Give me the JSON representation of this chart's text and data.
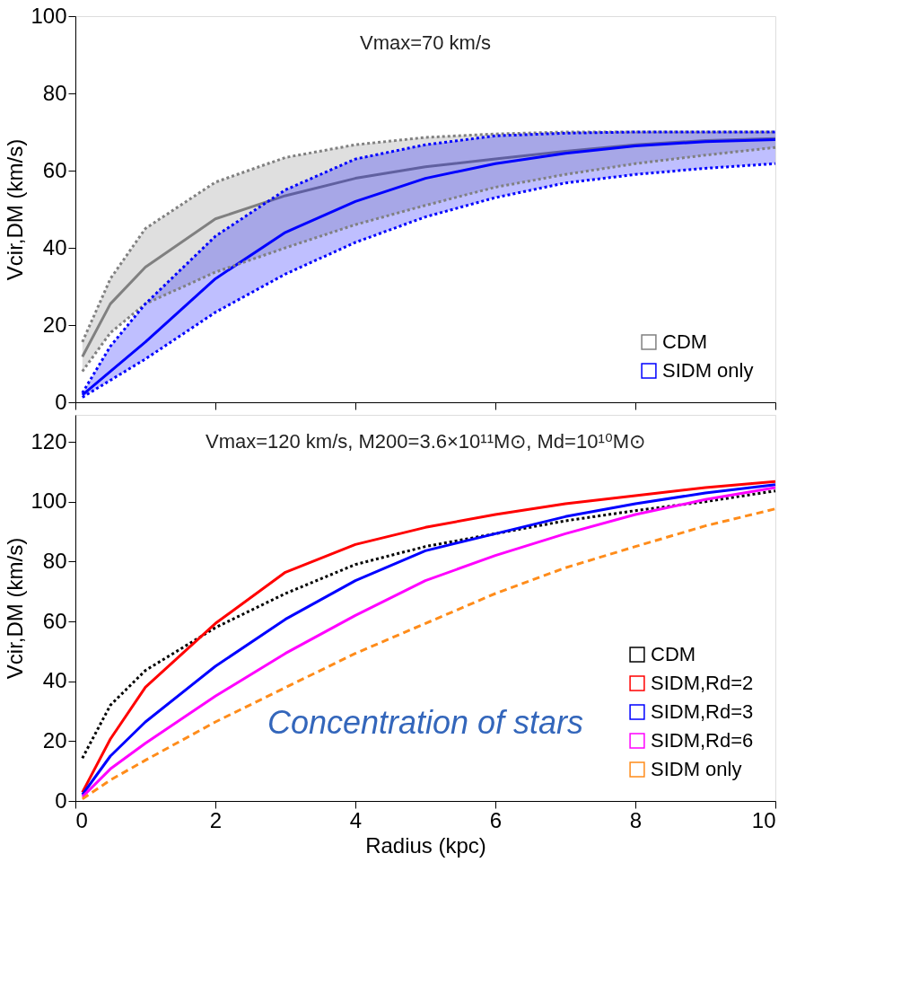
{
  "chart_data": [
    {
      "type": "line",
      "ylabel": "Vcir,DM (km/s)",
      "annotations": [
        "Vmax=70 km/s"
      ],
      "x": [
        0.1,
        0.5,
        1,
        2,
        3,
        4,
        5,
        6,
        7,
        8,
        9,
        10
      ],
      "xlim": [
        0,
        10
      ],
      "xticks": [
        0,
        2,
        4,
        6,
        8,
        10
      ],
      "ylim": [
        0,
        100
      ],
      "yticks": [
        0,
        20,
        40,
        60,
        80,
        100
      ],
      "tick_labels": "y",
      "grid": false,
      "legend": "bottom right",
      "marker": "none",
      "series": [
        {
          "name": "CDM",
          "color": "#808080",
          "line_style": "solid",
          "values": [
            11.8,
            25.5,
            35,
            47.5,
            53.5,
            58,
            61,
            63,
            65,
            66.7,
            67.8,
            68.3
          ],
          "lower": [
            8,
            18,
            25.5,
            33.7,
            40,
            46,
            51,
            55.7,
            59,
            61.8,
            64,
            66
          ],
          "upper": [
            15.6,
            32,
            45,
            57,
            63.4,
            66.7,
            68.6,
            69.5,
            70,
            70,
            70,
            70
          ]
        },
        {
          "name": "SIDM only",
          "color": "#0000ff",
          "line_style": "solid",
          "values": [
            1.9,
            8,
            15.6,
            32,
            44,
            52,
            58,
            61.8,
            64.5,
            66.4,
            67.5,
            68
          ],
          "lower": [
            1.3,
            5.7,
            11.2,
            23.3,
            33.2,
            41.4,
            48,
            53,
            56.8,
            59,
            60.6,
            61.8
          ],
          "upper": [
            2.4,
            14.5,
            25.5,
            43,
            55,
            63,
            66.7,
            69,
            69.7,
            70,
            70,
            70
          ]
        },
        {
          "color": "#808080",
          "line_style": "dotted",
          "values": [
            8,
            18,
            25.5,
            33.7,
            40,
            46,
            51,
            55.7,
            59,
            61.8,
            64,
            66
          ]
        },
        {
          "color": "#808080",
          "line_style": "dotted",
          "values": [
            15.6,
            32,
            45,
            57,
            63.4,
            66.7,
            68.6,
            69.5,
            70,
            70,
            70,
            70
          ]
        },
        {
          "color": "#0000ff",
          "line_style": "dotted",
          "values": [
            1.3,
            5.7,
            11.2,
            23.3,
            33.2,
            41.4,
            48,
            53,
            56.8,
            59,
            60.6,
            61.8
          ]
        },
        {
          "color": "#0000ff",
          "line_style": "dotted",
          "values": [
            2.4,
            14.5,
            25.5,
            43,
            55,
            63,
            66.7,
            69,
            69.7,
            70,
            70,
            70
          ]
        }
      ]
    },
    {
      "type": "line",
      "xlabel": "Radius (kpc)",
      "ylabel": "Vcir,DM (km/s)",
      "annotations": [
        "Vmax=120 km/s, M200=3.6×10¹¹M⊙, Md=10¹⁰M⊙",
        "Concentration of stars"
      ],
      "x": [
        0.1,
        0.5,
        1,
        2,
        3,
        4,
        5,
        6,
        7,
        8,
        9,
        10
      ],
      "xlim": [
        0,
        10
      ],
      "xticks": [
        0,
        2,
        4,
        6,
        8,
        10
      ],
      "ylim": [
        0,
        129
      ],
      "yticks": [
        0,
        20,
        40,
        60,
        80,
        100,
        120
      ],
      "grid": false,
      "legend": "bottom right",
      "marker": "none",
      "series": [
        {
          "name": "CDM",
          "color": "#000000",
          "line_style": "dotted",
          "values": [
            14.3,
            32,
            43.6,
            57.9,
            69.3,
            79,
            85,
            89.3,
            93.6,
            97,
            100,
            103.6
          ]
        },
        {
          "name": "SIDM,Rd=2",
          "color": "#ff0000",
          "line_style": "solid",
          "values": [
            2.9,
            20.7,
            38,
            59.3,
            76.4,
            85.7,
            91.4,
            95.7,
            99.3,
            102,
            104.7,
            106.7
          ]
        },
        {
          "name": "SIDM,Rd=3",
          "color": "#0000ff",
          "line_style": "solid",
          "values": [
            2.1,
            15,
            26.4,
            45,
            60.7,
            73.6,
            83.6,
            89.3,
            95,
            99.3,
            102.9,
            105.7
          ]
        },
        {
          "name": "SIDM,Rd=6",
          "color": "#ff00ff",
          "line_style": "solid",
          "values": [
            1.4,
            10.7,
            19.3,
            35,
            49.3,
            62,
            73.6,
            82,
            89.3,
            95.7,
            100.7,
            104.7
          ]
        },
        {
          "name": "SIDM only",
          "color": "#ff8c1a",
          "line_style": "dashed",
          "values": [
            0.7,
            7,
            13.6,
            26.4,
            37.9,
            49.3,
            59.3,
            69.3,
            77.9,
            85,
            91.9,
            97.6
          ]
        }
      ]
    }
  ]
}
